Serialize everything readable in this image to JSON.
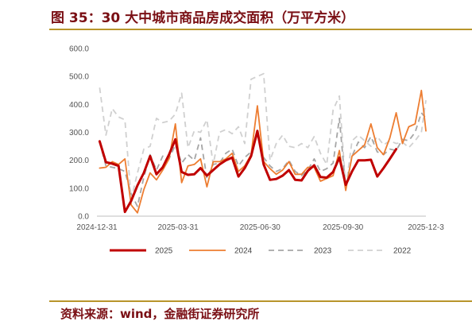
{
  "header": {
    "title": "图 35：30 大中城市商品房成交面积（万平方米）"
  },
  "footer": {
    "source": "资料来源：wind，金融街证券研究所"
  },
  "chart_data": {
    "type": "line",
    "title": "",
    "xlabel": "",
    "ylabel": "",
    "ylim": [
      0,
      600
    ],
    "y_ticks": [
      "0.0",
      "100.0",
      "200.0",
      "300.0",
      "400.0",
      "500.0",
      "600.0"
    ],
    "x_domain": [
      "2024-12-31",
      "2025-12-31"
    ],
    "x_ticks": [
      "2024-12-31",
      "2025-03-31",
      "2025-06-30",
      "2025-09-30",
      "2025-12-3"
    ],
    "grid": false,
    "legend": "bottom",
    "series": [
      {
        "name": "2025",
        "color": "#c00000",
        "dash": "solid",
        "width": 3,
        "points": [
          [
            "2025-01-03",
            268
          ],
          [
            "2025-01-10",
            193
          ],
          [
            "2025-01-17",
            188
          ],
          [
            "2025-01-24",
            180
          ],
          [
            "2025-01-31",
            15
          ],
          [
            "2025-02-07",
            55
          ],
          [
            "2025-02-14",
            110
          ],
          [
            "2025-02-21",
            155
          ],
          [
            "2025-02-28",
            215
          ],
          [
            "2025-03-07",
            150
          ],
          [
            "2025-03-14",
            175
          ],
          [
            "2025-03-21",
            220
          ],
          [
            "2025-03-28",
            275
          ],
          [
            "2025-04-04",
            158
          ],
          [
            "2025-04-11",
            148
          ],
          [
            "2025-04-18",
            150
          ],
          [
            "2025-04-25",
            172
          ],
          [
            "2025-05-02",
            145
          ],
          [
            "2025-05-09",
            165
          ],
          [
            "2025-05-16",
            185
          ],
          [
            "2025-05-23",
            200
          ],
          [
            "2025-05-30",
            210
          ],
          [
            "2025-06-06",
            142
          ],
          [
            "2025-06-13",
            172
          ],
          [
            "2025-06-20",
            215
          ],
          [
            "2025-06-27",
            305
          ],
          [
            "2025-07-04",
            185
          ],
          [
            "2025-07-11",
            130
          ],
          [
            "2025-07-18",
            133
          ],
          [
            "2025-07-25",
            145
          ],
          [
            "2025-08-01",
            165
          ],
          [
            "2025-08-08",
            130
          ],
          [
            "2025-08-15",
            128
          ],
          [
            "2025-08-22",
            162
          ],
          [
            "2025-08-29",
            182
          ],
          [
            "2025-09-05",
            140
          ],
          [
            "2025-09-12",
            138
          ],
          [
            "2025-09-19",
            158
          ],
          [
            "2025-09-26",
            210
          ],
          [
            "2025-10-03",
            112
          ],
          [
            "2025-10-10",
            160
          ],
          [
            "2025-10-17",
            200
          ],
          [
            "2025-10-24",
            200
          ],
          [
            "2025-10-31",
            202
          ],
          [
            "2025-11-07",
            142
          ],
          [
            "2025-11-14",
            172
          ],
          [
            "2025-11-21",
            205
          ],
          [
            "2025-11-28",
            240
          ]
        ]
      },
      {
        "name": "2024",
        "color": "#ed7d31",
        "dash": "solid",
        "width": 1.8,
        "points": [
          [
            "2025-01-03",
            172
          ],
          [
            "2025-01-10",
            175
          ],
          [
            "2025-01-17",
            195
          ],
          [
            "2025-01-24",
            185
          ],
          [
            "2025-01-31",
            205
          ],
          [
            "2025-02-07",
            40
          ],
          [
            "2025-02-14",
            12
          ],
          [
            "2025-02-21",
            95
          ],
          [
            "2025-02-28",
            155
          ],
          [
            "2025-03-07",
            130
          ],
          [
            "2025-03-14",
            165
          ],
          [
            "2025-03-21",
            205
          ],
          [
            "2025-03-28",
            330
          ],
          [
            "2025-04-04",
            120
          ],
          [
            "2025-04-11",
            180
          ],
          [
            "2025-04-18",
            185
          ],
          [
            "2025-04-25",
            205
          ],
          [
            "2025-05-02",
            105
          ],
          [
            "2025-05-09",
            195
          ],
          [
            "2025-05-16",
            195
          ],
          [
            "2025-05-23",
            205
          ],
          [
            "2025-05-30",
            225
          ],
          [
            "2025-06-06",
            160
          ],
          [
            "2025-06-13",
            180
          ],
          [
            "2025-06-20",
            220
          ],
          [
            "2025-06-27",
            395
          ],
          [
            "2025-07-04",
            195
          ],
          [
            "2025-07-11",
            170
          ],
          [
            "2025-07-18",
            150
          ],
          [
            "2025-07-25",
            165
          ],
          [
            "2025-08-01",
            195
          ],
          [
            "2025-08-08",
            150
          ],
          [
            "2025-08-15",
            150
          ],
          [
            "2025-08-22",
            175
          ],
          [
            "2025-08-29",
            175
          ],
          [
            "2025-09-05",
            125
          ],
          [
            "2025-09-12",
            135
          ],
          [
            "2025-09-19",
            145
          ],
          [
            "2025-09-26",
            235
          ],
          [
            "2025-10-03",
            92
          ],
          [
            "2025-10-10",
            215
          ],
          [
            "2025-10-17",
            235
          ],
          [
            "2025-10-24",
            255
          ],
          [
            "2025-10-31",
            330
          ],
          [
            "2025-11-07",
            245
          ],
          [
            "2025-11-14",
            220
          ],
          [
            "2025-11-21",
            280
          ],
          [
            "2025-11-28",
            370
          ],
          [
            "2025-12-05",
            260
          ],
          [
            "2025-12-12",
            320
          ],
          [
            "2025-12-19",
            330
          ],
          [
            "2025-12-26",
            450
          ],
          [
            "2025-12-31",
            305
          ]
        ]
      },
      {
        "name": "2023",
        "color": "#a6a6a6",
        "dash": "dashed",
        "width": 1.8,
        "points": [
          [
            "2025-01-03",
            265
          ],
          [
            "2025-01-10",
            180
          ],
          [
            "2025-01-17",
            175
          ],
          [
            "2025-01-24",
            170
          ],
          [
            "2025-01-31",
            160
          ],
          [
            "2025-02-07",
            80
          ],
          [
            "2025-02-14",
            35
          ],
          [
            "2025-02-21",
            140
          ],
          [
            "2025-02-28",
            220
          ],
          [
            "2025-03-07",
            165
          ],
          [
            "2025-03-14",
            215
          ],
          [
            "2025-03-21",
            205
          ],
          [
            "2025-03-28",
            255
          ],
          [
            "2025-04-04",
            190
          ],
          [
            "2025-04-11",
            220
          ],
          [
            "2025-04-18",
            200
          ],
          [
            "2025-04-25",
            280
          ],
          [
            "2025-05-02",
            135
          ],
          [
            "2025-05-09",
            185
          ],
          [
            "2025-05-16",
            190
          ],
          [
            "2025-05-23",
            225
          ],
          [
            "2025-05-30",
            240
          ],
          [
            "2025-06-06",
            180
          ],
          [
            "2025-06-13",
            210
          ],
          [
            "2025-06-20",
            230
          ],
          [
            "2025-06-27",
            290
          ],
          [
            "2025-07-04",
            210
          ],
          [
            "2025-07-11",
            180
          ],
          [
            "2025-07-18",
            160
          ],
          [
            "2025-07-25",
            170
          ],
          [
            "2025-08-01",
            200
          ],
          [
            "2025-08-08",
            160
          ],
          [
            "2025-08-15",
            145
          ],
          [
            "2025-08-22",
            165
          ],
          [
            "2025-08-29",
            205
          ],
          [
            "2025-09-05",
            160
          ],
          [
            "2025-09-12",
            170
          ],
          [
            "2025-09-19",
            190
          ],
          [
            "2025-09-26",
            350
          ],
          [
            "2025-10-03",
            100
          ],
          [
            "2025-10-10",
            215
          ],
          [
            "2025-10-17",
            265
          ],
          [
            "2025-10-24",
            245
          ],
          [
            "2025-10-31",
            285
          ],
          [
            "2025-11-07",
            230
          ],
          [
            "2025-11-14",
            220
          ],
          [
            "2025-11-21",
            240
          ],
          [
            "2025-11-28",
            235
          ],
          [
            "2025-12-05",
            275
          ],
          [
            "2025-12-12",
            270
          ],
          [
            "2025-12-19",
            300
          ],
          [
            "2025-12-26",
            370
          ],
          [
            "2025-12-31",
            350
          ]
        ]
      },
      {
        "name": "2022",
        "color": "#d0d0d0",
        "dash": "dashed",
        "width": 1.8,
        "points": [
          [
            "2025-01-03",
            460
          ],
          [
            "2025-01-10",
            290
          ],
          [
            "2025-01-17",
            385
          ],
          [
            "2025-01-24",
            355
          ],
          [
            "2025-01-31",
            345
          ],
          [
            "2025-02-07",
            60
          ],
          [
            "2025-02-14",
            155
          ],
          [
            "2025-02-21",
            240
          ],
          [
            "2025-02-28",
            250
          ],
          [
            "2025-03-07",
            350
          ],
          [
            "2025-03-14",
            335
          ],
          [
            "2025-03-21",
            340
          ],
          [
            "2025-03-28",
            365
          ],
          [
            "2025-04-04",
            440
          ],
          [
            "2025-04-11",
            245
          ],
          [
            "2025-04-18",
            305
          ],
          [
            "2025-04-25",
            300
          ],
          [
            "2025-05-02",
            345
          ],
          [
            "2025-05-09",
            185
          ],
          [
            "2025-05-16",
            300
          ],
          [
            "2025-05-23",
            310
          ],
          [
            "2025-05-30",
            295
          ],
          [
            "2025-06-06",
            320
          ],
          [
            "2025-06-13",
            260
          ],
          [
            "2025-06-20",
            490
          ],
          [
            "2025-06-27",
            500
          ],
          [
            "2025-07-04",
            510
          ],
          [
            "2025-07-11",
            200
          ],
          [
            "2025-07-18",
            260
          ],
          [
            "2025-07-25",
            290
          ],
          [
            "2025-08-01",
            250
          ],
          [
            "2025-08-08",
            245
          ],
          [
            "2025-08-15",
            260
          ],
          [
            "2025-08-22",
            245
          ],
          [
            "2025-08-29",
            285
          ],
          [
            "2025-09-05",
            225
          ],
          [
            "2025-09-12",
            185
          ],
          [
            "2025-09-19",
            380
          ],
          [
            "2025-09-26",
            430
          ],
          [
            "2025-10-03",
            100
          ],
          [
            "2025-10-10",
            270
          ],
          [
            "2025-10-17",
            290
          ],
          [
            "2025-10-24",
            270
          ],
          [
            "2025-10-31",
            250
          ],
          [
            "2025-11-07",
            285
          ],
          [
            "2025-11-14",
            255
          ],
          [
            "2025-11-21",
            270
          ],
          [
            "2025-11-28",
            260
          ],
          [
            "2025-12-05",
            265
          ],
          [
            "2025-12-12",
            245
          ],
          [
            "2025-12-19",
            270
          ],
          [
            "2025-12-26",
            300
          ],
          [
            "2025-12-31",
            415
          ]
        ]
      }
    ]
  }
}
